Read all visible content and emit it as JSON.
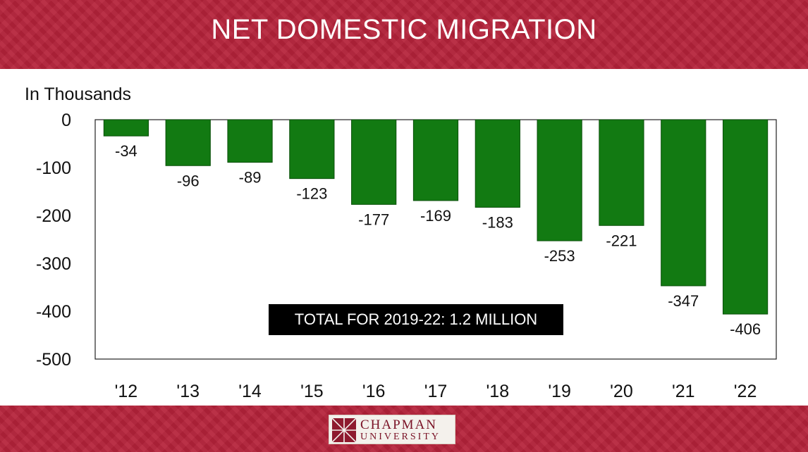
{
  "header": {
    "title": "NET DOMESTIC MIGRATION"
  },
  "chart_data": {
    "type": "bar",
    "title": "NET DOMESTIC MIGRATION",
    "ylabel": "In Thousands",
    "xlabel": "",
    "categories": [
      "'12",
      "'13",
      "'14",
      "'15",
      "'16",
      "'17",
      "'18",
      "'19",
      "'20",
      "'21",
      "'22"
    ],
    "values": [
      -34,
      -96,
      -89,
      -123,
      -177,
      -169,
      -183,
      -253,
      -221,
      -347,
      -406
    ],
    "value_labels": [
      "-34",
      "-96",
      "-89",
      "-123",
      "-177",
      "-169",
      "-183",
      "-253",
      "-221",
      "-347",
      "-406"
    ],
    "ylim": [
      -500,
      0
    ],
    "yticks": [
      0,
      -100,
      -200,
      -300,
      -400,
      -500
    ],
    "ytick_labels": [
      "0",
      "-100",
      "-200",
      "-300",
      "-400",
      "-500"
    ],
    "bar_color": "#127a12",
    "grid": false,
    "annotation": "TOTAL FOR 2019-22: 1.2 MILLION"
  },
  "footer": {
    "logo_line1": "CHAPMAN",
    "logo_line2": "UNIVERSITY"
  },
  "colors": {
    "banner": "#b5223a",
    "bar": "#127a12",
    "callout_bg": "#000000"
  }
}
